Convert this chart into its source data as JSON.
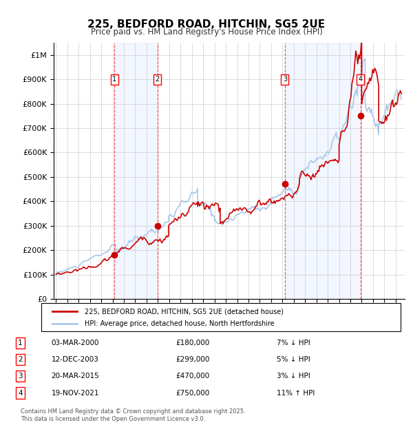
{
  "title": "225, BEDFORD ROAD, HITCHIN, SG5 2UE",
  "subtitle": "Price paid vs. HM Land Registry's House Price Index (HPI)",
  "ylabel": "",
  "ylim": [
    0,
    1050000
  ],
  "yticks": [
    0,
    100000,
    200000,
    300000,
    400000,
    500000,
    600000,
    700000,
    800000,
    900000,
    1000000
  ],
  "ytick_labels": [
    "£0",
    "£100K",
    "£200K",
    "£300K",
    "£400K",
    "£500K",
    "£600K",
    "£700K",
    "£800K",
    "£900K",
    "£1M"
  ],
  "hpi_color": "#aac8e8",
  "price_color": "#cc0000",
  "background_color": "#ddeeff",
  "sale_dates": [
    "2000-03-03",
    "2003-12-12",
    "2015-03-20",
    "2021-11-19"
  ],
  "sale_prices": [
    180000,
    299000,
    470000,
    750000
  ],
  "sale_labels": [
    "1",
    "2",
    "3",
    "4"
  ],
  "table_entries": [
    {
      "label": "1",
      "date": "03-MAR-2000",
      "price": "£180,000",
      "hpi": "7% ↓ HPI"
    },
    {
      "label": "2",
      "date": "12-DEC-2003",
      "price": "£299,000",
      "hpi": "5% ↓ HPI"
    },
    {
      "label": "3",
      "date": "20-MAR-2015",
      "price": "£470,000",
      "hpi": "3% ↓ HPI"
    },
    {
      "label": "4",
      "date": "19-NOV-2021",
      "price": "£750,000",
      "hpi": "11% ↑ HPI"
    }
  ],
  "legend_line1": "225, BEDFORD ROAD, HITCHIN, SG5 2UE (detached house)",
  "legend_line2": "HPI: Average price, detached house, North Hertfordshire",
  "footnote": "Contains HM Land Registry data © Crown copyright and database right 2025.\nThis data is licensed under the Open Government Licence v3.0.",
  "xstart": 1995,
  "xend": 2025
}
